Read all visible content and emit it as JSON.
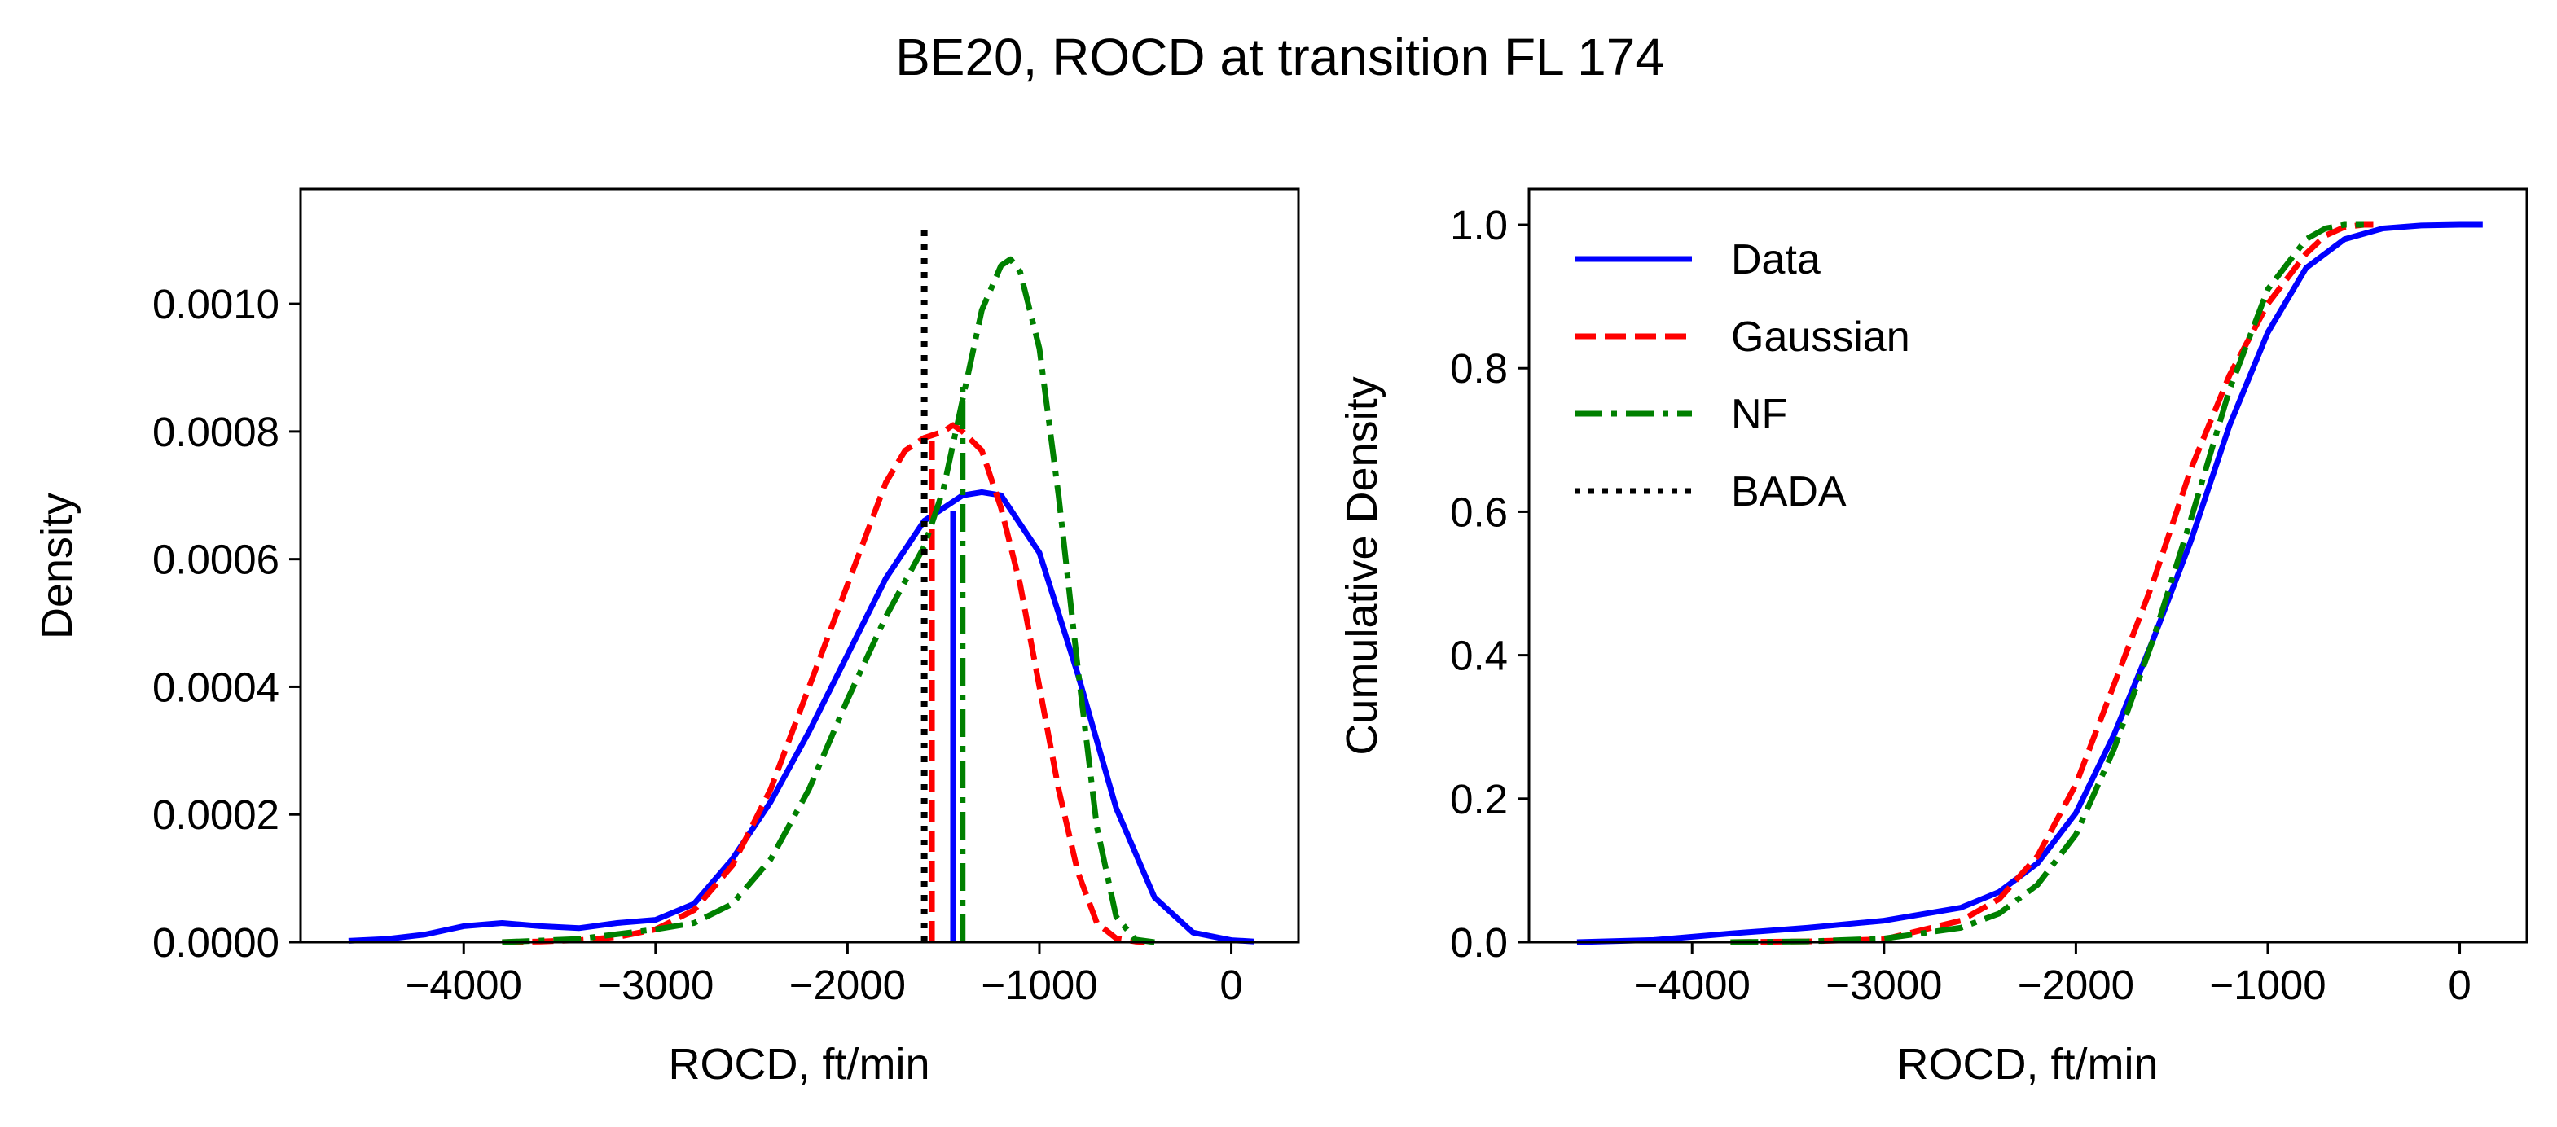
{
  "chart_data": {
    "title": "BE20, ROCD at transition FL 174",
    "colors": {
      "data": "#0000ff",
      "gaussian": "#ff0000",
      "nf": "#008000",
      "bada": "#000000"
    },
    "charts": [
      {
        "type": "line",
        "id": "density",
        "xlabel": "ROCD, ft/min",
        "ylabel": "Density",
        "xlim": [
          -4850,
          350
        ],
        "ylim": [
          0,
          0.00118
        ],
        "xticks": [
          -4000,
          -3000,
          -2000,
          -1000,
          0
        ],
        "xtick_labels": [
          "−4000",
          "−3000",
          "−2000",
          "−1000",
          "0"
        ],
        "yticks": [
          0,
          0.0002,
          0.0004,
          0.0006,
          0.0008,
          0.001
        ],
        "ytick_labels": [
          "0.0000",
          "0.0002",
          "0.0004",
          "0.0006",
          "0.0008",
          "0.0010"
        ],
        "series": [
          {
            "name": "Data",
            "key": "data",
            "style": "solid",
            "x": [
              -4600,
              -4400,
              -4200,
              -4000,
              -3800,
              -3600,
              -3400,
              -3200,
              -3000,
              -2800,
              -2600,
              -2400,
              -2200,
              -2000,
              -1800,
              -1600,
              -1400,
              -1300,
              -1200,
              -1000,
              -800,
              -600,
              -400,
              -200,
              0,
              120
            ],
            "y": [
              2e-06,
              5e-06,
              1.2e-05,
              2.5e-05,
              3e-05,
              2.5e-05,
              2.2e-05,
              3e-05,
              3.5e-05,
              6e-05,
              0.00013,
              0.00022,
              0.00033,
              0.00045,
              0.00057,
              0.00066,
              0.0007,
              0.000705,
              0.0007,
              0.00061,
              0.00042,
              0.00021,
              7e-05,
              1.5e-05,
              3e-06,
              1e-06
            ],
            "median": -1450,
            "median_density": 0.000675
          },
          {
            "name": "Gaussian",
            "key": "gaussian",
            "style": "dashed",
            "x": [
              -3800,
              -3600,
              -3400,
              -3200,
              -3000,
              -2800,
              -2600,
              -2400,
              -2200,
              -2000,
              -1800,
              -1700,
              -1600,
              -1500,
              -1450,
              -1400,
              -1300,
              -1200,
              -1100,
              -1000,
              -900,
              -800,
              -700,
              -600,
              -500,
              -450
            ],
            "y": [
              0,
              1e-06,
              3e-06,
              8e-06,
              2e-05,
              5e-05,
              0.00012,
              0.00024,
              0.0004,
              0.00056,
              0.00072,
              0.00077,
              0.00079,
              0.0008,
              0.00081,
              0.0008,
              0.00077,
              0.00068,
              0.00056,
              0.0004,
              0.00024,
              0.00011,
              3e-05,
              6e-06,
              1e-06,
              0
            ],
            "median": -1560,
            "median_density": 0.000785
          },
          {
            "name": "NF",
            "key": "nf",
            "style": "dashdot",
            "x": [
              -3800,
              -3400,
              -3000,
              -2800,
              -2600,
              -2400,
              -2200,
              -2000,
              -1800,
              -1600,
              -1500,
              -1400,
              -1300,
              -1200,
              -1150,
              -1100,
              -1000,
              -900,
              -800,
              -700,
              -600,
              -500,
              -400
            ],
            "y": [
              0,
              5e-06,
              2e-05,
              3e-05,
              6e-05,
              0.00013,
              0.00024,
              0.00038,
              0.00051,
              0.00062,
              0.00071,
              0.00085,
              0.00099,
              0.00106,
              0.00107,
              0.00105,
              0.00093,
              0.0007,
              0.00043,
              0.00018,
              4e-05,
              4e-06,
              0
            ],
            "median": -1400,
            "median_density": 0.00088
          },
          {
            "name": "BADA",
            "key": "bada",
            "style": "dotted",
            "vline_x": -1600,
            "ymax": 0.00112
          }
        ]
      },
      {
        "type": "line",
        "id": "cumulative",
        "xlabel": "ROCD, ft/min",
        "ylabel": "Cumulative Density",
        "xlim": [
          -4850,
          350
        ],
        "ylim": [
          0,
          1.05
        ],
        "xticks": [
          -4000,
          -3000,
          -2000,
          -1000,
          0
        ],
        "xtick_labels": [
          "−4000",
          "−3000",
          "−2000",
          "−1000",
          "0"
        ],
        "yticks": [
          0,
          0.2,
          0.4,
          0.6,
          0.8,
          1.0
        ],
        "ytick_labels": [
          "0.0",
          "0.2",
          "0.4",
          "0.6",
          "0.8",
          "1.0"
        ],
        "legend": {
          "placement": "top-left",
          "entries": [
            "Data",
            "Gaussian",
            "NF",
            "BADA"
          ]
        },
        "series": [
          {
            "name": "Data",
            "key": "data",
            "style": "solid",
            "x": [
              -4600,
              -4200,
              -3800,
              -3400,
              -3000,
              -2600,
              -2400,
              -2200,
              -2000,
              -1800,
              -1600,
              -1400,
              -1200,
              -1000,
              -800,
              -600,
              -400,
              -200,
              0,
              120
            ],
            "y": [
              0,
              0.003,
              0.012,
              0.02,
              0.03,
              0.048,
              0.07,
              0.11,
              0.18,
              0.29,
              0.42,
              0.56,
              0.72,
              0.85,
              0.94,
              0.98,
              0.995,
              0.999,
              1.0,
              1.0
            ]
          },
          {
            "name": "Gaussian",
            "key": "gaussian",
            "style": "dashed",
            "x": [
              -3800,
              -3400,
              -3000,
              -2600,
              -2400,
              -2200,
              -2000,
              -1800,
              -1600,
              -1400,
              -1200,
              -1000,
              -800,
              -700,
              -600,
              -500,
              -450
            ],
            "y": [
              0,
              0.001,
              0.004,
              0.03,
              0.06,
              0.12,
              0.22,
              0.36,
              0.5,
              0.66,
              0.79,
              0.89,
              0.96,
              0.985,
              0.997,
              1.0,
              1.0
            ]
          },
          {
            "name": "NF",
            "key": "nf",
            "style": "dashdot",
            "x": [
              -3800,
              -3400,
              -3000,
              -2600,
              -2400,
              -2200,
              -2000,
              -1800,
              -1600,
              -1400,
              -1200,
              -1000,
              -800,
              -700,
              -600,
              -500
            ],
            "y": [
              0,
              0.001,
              0.005,
              0.02,
              0.04,
              0.08,
              0.15,
              0.27,
              0.42,
              0.59,
              0.77,
              0.91,
              0.98,
              0.995,
              1.0,
              1.0
            ]
          }
        ]
      }
    ]
  }
}
